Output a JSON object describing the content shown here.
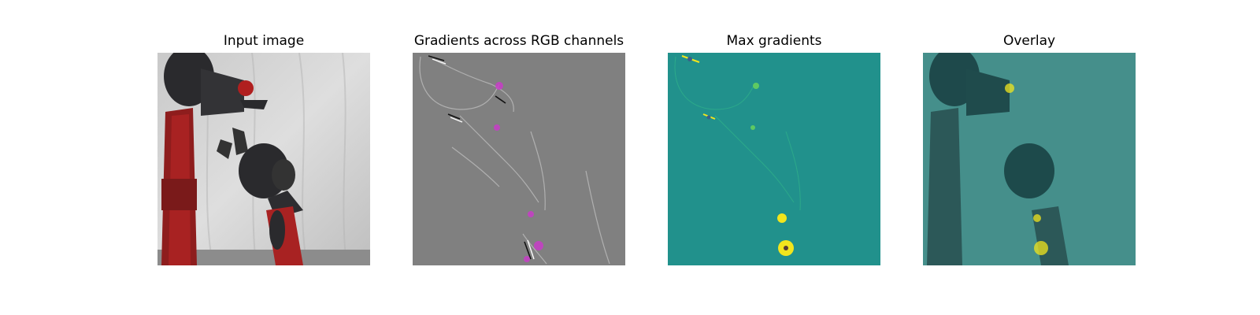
{
  "figure": {
    "panels": [
      {
        "title": "Input image"
      },
      {
        "title": "Gradients across RGB channels"
      },
      {
        "title": "Max gradients"
      },
      {
        "title": "Overlay"
      }
    ]
  },
  "colors": {
    "background": "#ffffff",
    "gradient_gray": "#808080",
    "max_grad_teal": "#21918c",
    "robot_red": "#a82222",
    "robot_dark": "#2a2a2d",
    "backdrop_light": "#d9d9d9",
    "highlight_magenta": "#c83cc8",
    "highlight_yellow": "#f2e51d"
  }
}
